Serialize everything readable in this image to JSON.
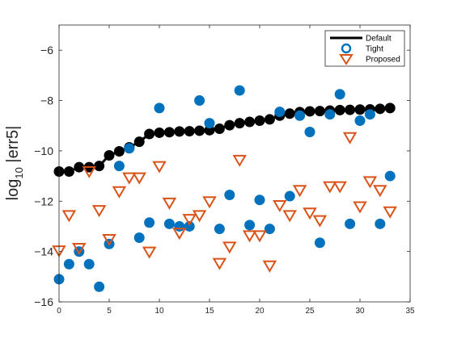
{
  "chart_data": {
    "type": "scatter",
    "ylabel_main": "log",
    "ylabel_sub": "10",
    "ylabel_rest": " |err5|",
    "xlim": [
      0,
      35
    ],
    "ylim": [
      -16,
      -5
    ],
    "xticks": [
      0,
      5,
      10,
      15,
      20,
      25,
      30,
      35
    ],
    "yticks": [
      -16,
      -14,
      -12,
      -10,
      -8,
      -6
    ],
    "xtick_labels": [
      "0",
      "5",
      "10",
      "15",
      "20",
      "25",
      "30",
      "35"
    ],
    "ytick_labels": [
      "−16",
      "−14",
      "−12",
      "−10",
      "−8",
      "−6"
    ],
    "grid": false,
    "legend_position": "top-right",
    "series": [
      {
        "name": "Default",
        "marker": "line-dots",
        "color": "#000000",
        "x": [
          0,
          1,
          2,
          3,
          4,
          5,
          6,
          7,
          8,
          9,
          10,
          11,
          12,
          13,
          14,
          15,
          16,
          17,
          18,
          19,
          20,
          21,
          22,
          23,
          24,
          25,
          26,
          27,
          28,
          29,
          30,
          31,
          32,
          33
        ],
        "y": [
          -10.82,
          -10.82,
          -10.65,
          -10.65,
          -10.6,
          -10.18,
          -10.02,
          -9.86,
          -9.64,
          -9.33,
          -9.28,
          -9.26,
          -9.23,
          -9.22,
          -9.2,
          -9.18,
          -9.12,
          -8.98,
          -8.9,
          -8.85,
          -8.8,
          -8.75,
          -8.6,
          -8.52,
          -8.46,
          -8.43,
          -8.42,
          -8.4,
          -8.38,
          -8.37,
          -8.36,
          -8.35,
          -8.33,
          -8.3
        ]
      },
      {
        "name": "Tight",
        "marker": "circle",
        "color": "#0072BD",
        "x": [
          0,
          1,
          2,
          3,
          4,
          5,
          6,
          7,
          8,
          9,
          10,
          11,
          12,
          13,
          14,
          15,
          16,
          17,
          18,
          19,
          20,
          21,
          22,
          23,
          24,
          25,
          26,
          27,
          28,
          29,
          30,
          31,
          32,
          33
        ],
        "y": [
          -15.1,
          -14.5,
          -14.0,
          -14.5,
          -15.4,
          -13.7,
          -10.6,
          -9.9,
          -13.45,
          -12.85,
          -8.3,
          -12.9,
          -13.0,
          -13.0,
          -8.0,
          -8.9,
          -13.1,
          -11.75,
          -7.6,
          -12.95,
          -11.95,
          -13.1,
          -8.45,
          -11.8,
          -8.6,
          -9.25,
          -13.65,
          -8.55,
          -7.75,
          -12.9,
          -8.8,
          -8.55,
          -12.9,
          -11.0
        ]
      },
      {
        "name": "Proposed",
        "marker": "triangle-down",
        "color": "#D95319",
        "x": [
          0,
          1,
          2,
          3,
          4,
          5,
          6,
          7,
          8,
          9,
          10,
          11,
          12,
          13,
          14,
          15,
          16,
          17,
          18,
          19,
          20,
          21,
          22,
          23,
          24,
          25,
          26,
          27,
          28,
          29,
          30,
          31,
          32,
          33
        ],
        "y": [
          -13.95,
          -12.55,
          -13.85,
          -10.8,
          -12.35,
          -13.5,
          -11.6,
          -11.05,
          -11.05,
          -14.0,
          -10.6,
          -12.05,
          -13.25,
          -12.7,
          -12.55,
          -12.0,
          -14.45,
          -13.8,
          -10.35,
          -13.35,
          -13.35,
          -14.55,
          -12.15,
          -12.55,
          -11.55,
          -12.45,
          -12.75,
          -11.4,
          -11.4,
          -9.45,
          -12.2,
          -11.2,
          -11.55,
          -12.4
        ]
      }
    ]
  }
}
